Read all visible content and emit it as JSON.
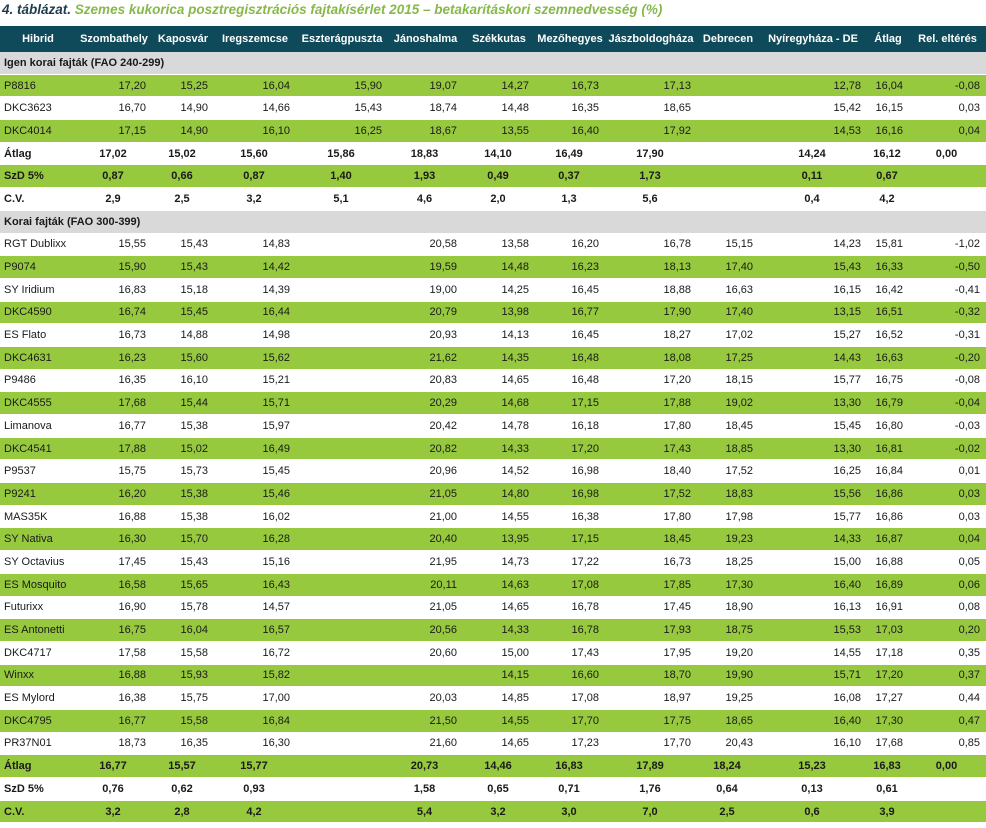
{
  "title_lead": "4. táblázat.",
  "title": "Szemes kukorica posztregisztrációs fajtakísérlet 2015 – betakarításkori szemnedvesség (%)",
  "table": {
    "header": [
      "Hibrid",
      "Szombathely",
      "Kaposvár",
      "Iregszemcse",
      "Eszterágpuszta",
      "Jánoshalma",
      "Székkutas",
      "Mezőhegyes",
      "Jászboldogháza",
      "Debrecen",
      "Nyíregyháza - DE",
      "Átlag",
      "Rel. eltérés"
    ],
    "sections": [
      {
        "title": "Igen korai fajták (FAO 240-299)",
        "rows": [
          [
            "P8816",
            "17,20",
            "15,25",
            "16,04",
            "15,90",
            "19,07",
            "14,27",
            "16,73",
            "17,13",
            null,
            "12,78",
            "16,04",
            "-0,08"
          ],
          [
            "DKC3623",
            "16,70",
            "14,90",
            "14,66",
            "15,43",
            "18,74",
            "14,48",
            "16,35",
            "18,65",
            null,
            "15,42",
            "16,15",
            "0,03"
          ],
          [
            "DKC4014",
            "17,15",
            "14,90",
            "16,10",
            "16,25",
            "18,67",
            "13,55",
            "16,40",
            "17,92",
            null,
            "14,53",
            "16,16",
            "0,04"
          ]
        ],
        "summary": [
          [
            "Átlag",
            "17,02",
            "15,02",
            "15,60",
            "15,86",
            "18,83",
            "14,10",
            "16,49",
            "17,90",
            null,
            "14,24",
            "16,12",
            "0,00"
          ],
          [
            "SzD 5%",
            "0,87",
            "0,66",
            "0,87",
            "1,40",
            "1,93",
            "0,49",
            "0,37",
            "1,73",
            null,
            "0,11",
            "0,67",
            null
          ],
          [
            "C.V.",
            "2,9",
            "2,5",
            "3,2",
            "5,1",
            "4,6",
            "2,0",
            "1,3",
            "5,6",
            null,
            "0,4",
            "4,2",
            null
          ]
        ]
      },
      {
        "title": "Korai fajták (FAO 300-399)",
        "rows": [
          [
            "RGT Dublixx",
            "15,55",
            "15,43",
            "14,83",
            null,
            "20,58",
            "13,58",
            "16,20",
            "16,78",
            "15,15",
            "14,23",
            "15,81",
            "-1,02"
          ],
          [
            "P9074",
            "15,90",
            "15,43",
            "14,42",
            null,
            "19,59",
            "14,48",
            "16,23",
            "18,13",
            "17,40",
            "15,43",
            "16,33",
            "-0,50"
          ],
          [
            "SY Iridium",
            "16,83",
            "15,18",
            "14,39",
            null,
            "19,00",
            "14,25",
            "16,45",
            "18,88",
            "16,63",
            "16,15",
            "16,42",
            "-0,41"
          ],
          [
            "DKC4590",
            "16,74",
            "15,45",
            "16,44",
            null,
            "20,79",
            "13,98",
            "16,77",
            "17,90",
            "17,40",
            "13,15",
            "16,51",
            "-0,32"
          ],
          [
            "ES Flato",
            "16,73",
            "14,88",
            "14,98",
            null,
            "20,93",
            "14,13",
            "16,45",
            "18,27",
            "17,02",
            "15,27",
            "16,52",
            "-0,31"
          ],
          [
            "DKC4631",
            "16,23",
            "15,60",
            "15,62",
            null,
            "21,62",
            "14,35",
            "16,48",
            "18,08",
            "17,25",
            "14,43",
            "16,63",
            "-0,20"
          ],
          [
            "P9486",
            "16,35",
            "16,10",
            "15,21",
            null,
            "20,83",
            "14,65",
            "16,48",
            "17,20",
            "18,15",
            "15,77",
            "16,75",
            "-0,08"
          ],
          [
            "DKC4555",
            "17,68",
            "15,44",
            "15,71",
            null,
            "20,29",
            "14,68",
            "17,15",
            "17,88",
            "19,02",
            "13,30",
            "16,79",
            "-0,04"
          ],
          [
            "Limanova",
            "16,77",
            "15,38",
            "15,97",
            null,
            "20,42",
            "14,78",
            "16,18",
            "17,80",
            "18,45",
            "15,45",
            "16,80",
            "-0,03"
          ],
          [
            "DKC4541",
            "17,88",
            "15,02",
            "16,49",
            null,
            "20,82",
            "14,33",
            "17,20",
            "17,43",
            "18,85",
            "13,30",
            "16,81",
            "-0,02"
          ],
          [
            "P9537",
            "15,75",
            "15,73",
            "15,45",
            null,
            "20,96",
            "14,52",
            "16,98",
            "18,40",
            "17,52",
            "16,25",
            "16,84",
            "0,01"
          ],
          [
            "P9241",
            "16,20",
            "15,38",
            "15,46",
            null,
            "21,05",
            "14,80",
            "16,98",
            "17,52",
            "18,83",
            "15,56",
            "16,86",
            "0,03"
          ],
          [
            "MAS35K",
            "16,88",
            "15,38",
            "16,02",
            null,
            "21,00",
            "14,55",
            "16,38",
            "17,80",
            "17,98",
            "15,77",
            "16,86",
            "0,03"
          ],
          [
            "SY Nativa",
            "16,30",
            "15,70",
            "16,28",
            null,
            "20,40",
            "13,95",
            "17,15",
            "18,45",
            "19,23",
            "14,33",
            "16,87",
            "0,04"
          ],
          [
            "SY Octavius",
            "17,45",
            "15,43",
            "15,16",
            null,
            "21,95",
            "14,73",
            "17,22",
            "16,73",
            "18,25",
            "15,00",
            "16,88",
            "0,05"
          ],
          [
            "ES Mosquito",
            "16,58",
            "15,65",
            "16,43",
            null,
            "20,11",
            "14,63",
            "17,08",
            "17,85",
            "17,30",
            "16,40",
            "16,89",
            "0,06"
          ],
          [
            "Futurixx",
            "16,90",
            "15,78",
            "14,57",
            null,
            "21,05",
            "14,65",
            "16,78",
            "17,45",
            "18,90",
            "16,13",
            "16,91",
            "0,08"
          ],
          [
            "ES Antonetti",
            "16,75",
            "16,04",
            "16,57",
            null,
            "20,56",
            "14,33",
            "16,78",
            "17,93",
            "18,75",
            "15,53",
            "17,03",
            "0,20"
          ],
          [
            "DKC4717",
            "17,58",
            "15,58",
            "16,72",
            null,
            "20,60",
            "15,00",
            "17,43",
            "17,95",
            "19,20",
            "14,55",
            "17,18",
            "0,35"
          ],
          [
            "Winxx",
            "16,88",
            "15,93",
            "15,82",
            null,
            null,
            "14,15",
            "16,60",
            "18,70",
            "19,90",
            "15,71",
            "17,20",
            "0,37"
          ],
          [
            "ES Mylord",
            "16,38",
            "15,75",
            "17,00",
            null,
            "20,03",
            "14,85",
            "17,08",
            "18,97",
            "19,25",
            "16,08",
            "17,27",
            "0,44"
          ],
          [
            "DKC4795",
            "16,77",
            "15,58",
            "16,84",
            null,
            "21,50",
            "14,55",
            "17,70",
            "17,75",
            "18,65",
            "16,40",
            "17,30",
            "0,47"
          ],
          [
            "PR37N01",
            "18,73",
            "16,35",
            "16,30",
            null,
            "21,60",
            "14,65",
            "17,23",
            "17,70",
            "20,43",
            "16,10",
            "17,68",
            "0,85"
          ]
        ],
        "summary": [
          [
            "Átlag",
            "16,77",
            "15,57",
            "15,77",
            null,
            "20,73",
            "14,46",
            "16,83",
            "17,89",
            "18,24",
            "15,23",
            "16,83",
            "0,00"
          ],
          [
            "SzD 5%",
            "0,76",
            "0,62",
            "0,93",
            null,
            "1,58",
            "0,65",
            "0,71",
            "1,76",
            "0,64",
            "0,13",
            "0,61",
            null
          ],
          [
            "C.V.",
            "3,2",
            "2,8",
            "4,2",
            null,
            "5,4",
            "3,2",
            "3,0",
            "7,0",
            "2,5",
            "0,6",
            "3,9",
            null
          ]
        ]
      }
    ]
  }
}
